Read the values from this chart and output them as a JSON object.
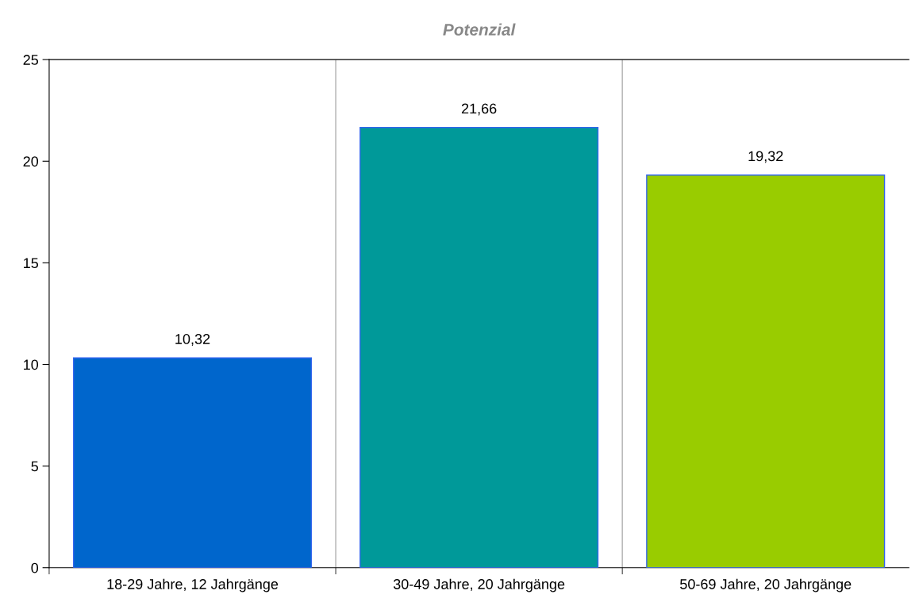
{
  "chart_data": {
    "type": "bar",
    "title": "Potenzial",
    "categories": [
      "18-29 Jahre, 12 Jahrgänge",
      "30-49 Jahre, 20 Jahrgänge",
      "50-69 Jahre, 20 Jahrgänge"
    ],
    "values": [
      10.32,
      21.66,
      19.32
    ],
    "value_labels": [
      "10,32",
      "21,66",
      "19,32"
    ],
    "colors": [
      "#0066cc",
      "#009999",
      "#99cc00"
    ],
    "ylim": [
      0,
      25
    ],
    "yticks": [
      0,
      5,
      10,
      15,
      20,
      25
    ],
    "grid": "x",
    "legend": false
  }
}
